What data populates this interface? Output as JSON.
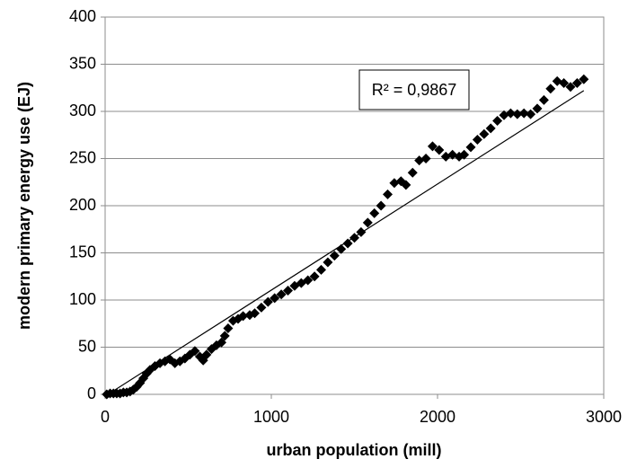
{
  "chart_data": {
    "type": "scatter",
    "x_label": "urban population (mill)",
    "y_label": "modern primary energy use (EJ)",
    "annotation": "R² = 0,9867",
    "color": "#000000",
    "x": [
      10,
      30,
      50,
      70,
      90,
      110,
      130,
      150,
      170,
      190,
      210,
      230,
      250,
      270,
      300,
      330,
      360,
      390,
      420,
      450,
      480,
      510,
      540,
      570,
      590,
      610,
      640,
      670,
      700,
      720,
      740,
      770,
      800,
      830,
      870,
      900,
      940,
      980,
      1020,
      1060,
      1100,
      1140,
      1180,
      1220,
      1260,
      1300,
      1340,
      1380,
      1420,
      1460,
      1500,
      1540,
      1580,
      1620,
      1660,
      1700,
      1740,
      1780,
      1810,
      1850,
      1890,
      1930,
      1970,
      2010,
      2050,
      2090,
      2130,
      2160,
      2200,
      2240,
      2280,
      2320,
      2360,
      2400,
      2440,
      2480,
      2520,
      2560,
      2600,
      2640,
      2680,
      2720,
      2760,
      2800,
      2840,
      2880
    ],
    "values": [
      0,
      1,
      1,
      1,
      1,
      2,
      2,
      3,
      5,
      8,
      12,
      17,
      22,
      26,
      30,
      33,
      35,
      37,
      33,
      35,
      38,
      42,
      46,
      40,
      36,
      42,
      48,
      52,
      55,
      62,
      70,
      78,
      80,
      83,
      84,
      86,
      92,
      98,
      102,
      106,
      110,
      115,
      118,
      121,
      125,
      132,
      140,
      147,
      154,
      160,
      166,
      172,
      182,
      192,
      200,
      212,
      224,
      226,
      222,
      235,
      248,
      250,
      263,
      259,
      252,
      254,
      252,
      254,
      262,
      270,
      276,
      282,
      290,
      296,
      298,
      297,
      298,
      297,
      303,
      312,
      324,
      332,
      330,
      326,
      330,
      334
    ],
    "trendline": {
      "x": [
        0,
        2880
      ],
      "values": [
        -2,
        322
      ]
    },
    "xlim": [
      0,
      3000
    ],
    "xticks": [
      0,
      1000,
      2000,
      3000
    ],
    "ylim": [
      0,
      400
    ],
    "yticks": [
      0,
      50,
      100,
      150,
      200,
      250,
      300,
      350,
      400
    ],
    "grid": true
  }
}
